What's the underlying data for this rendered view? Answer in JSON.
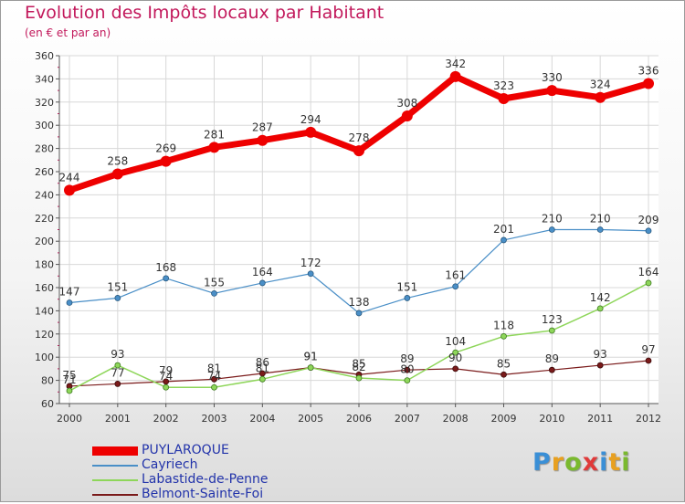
{
  "title": "Evolution des Impôts locaux par Habitant",
  "subtitle": "(en € et par an)",
  "logo": {
    "text": "Proxiti",
    "letters": [
      {
        "ch": "P",
        "color": "#3a8fd6"
      },
      {
        "ch": "r",
        "color": "#e8a020"
      },
      {
        "ch": "o",
        "color": "#7ab92e"
      },
      {
        "ch": "x",
        "color": "#e03a3a"
      },
      {
        "ch": "i",
        "color": "#3a8fd6"
      },
      {
        "ch": "t",
        "color": "#e8a020"
      },
      {
        "ch": "i",
        "color": "#7ab92e"
      }
    ]
  },
  "chart_data": {
    "type": "line",
    "x": [
      "2000",
      "2001",
      "2002",
      "2003",
      "2004",
      "2005",
      "2006",
      "2007",
      "2008",
      "2009",
      "2010",
      "2011",
      "2012"
    ],
    "ylim": [
      60,
      360
    ],
    "yticks": [
      60,
      80,
      100,
      120,
      140,
      160,
      180,
      200,
      220,
      240,
      260,
      280,
      300,
      320,
      340,
      360
    ],
    "grid": true,
    "legend_position": "bottom-left",
    "series": [
      {
        "name": "PUYLAROQUE",
        "color": "#ee0000",
        "values": [
          244,
          258,
          269,
          281,
          287,
          294,
          278,
          308,
          342,
          323,
          330,
          324,
          336
        ]
      },
      {
        "name": "Cayriech",
        "color": "#4a8fc7",
        "values": [
          147,
          151,
          168,
          155,
          164,
          172,
          138,
          151,
          161,
          201,
          210,
          210,
          209
        ]
      },
      {
        "name": "Labastide-de-Penne",
        "color": "#8ed65a",
        "values": [
          71,
          93,
          74,
          74,
          81,
          91,
          82,
          80,
          104,
          118,
          123,
          142,
          164
        ]
      },
      {
        "name": "Belmont-Sainte-Foi",
        "color": "#7a1a1a",
        "values": [
          75,
          77,
          79,
          81,
          86,
          91,
          85,
          89,
          90,
          85,
          89,
          93,
          97
        ]
      }
    ]
  }
}
